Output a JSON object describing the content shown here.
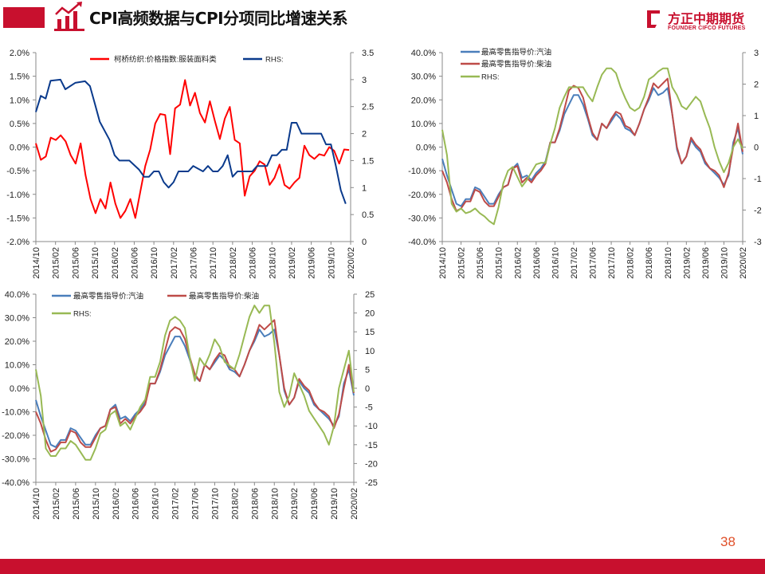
{
  "header": {
    "title": "CPI高频数据与CPI分项同比增速关系",
    "accent": "#c8102e"
  },
  "logo": {
    "cn": "方正中期期货",
    "en": "FOUNDER CIFCO FUTURES"
  },
  "footer": {
    "page_number": "38"
  },
  "chart_data": [
    {
      "type": "line",
      "title": "",
      "x_tick_labels": [
        "2014/10",
        "2015/02",
        "2015/06",
        "2015/10",
        "2016/02",
        "2016/06",
        "2016/10",
        "2017/02",
        "2017/06",
        "2017/10",
        "2018/02",
        "2018/06",
        "2018/10",
        "2019/02",
        "2019/06",
        "2019/10",
        "2020/02"
      ],
      "x_unit": "month index from 2014/10",
      "y_left": {
        "range": [
          -2.0,
          2.0
        ],
        "step": 0.5,
        "labels": [
          "2.0%",
          "1.5%",
          "1.0%",
          "0.5%",
          "0.0%",
          "-0.5%",
          "-1.0%",
          "-1.5%",
          "-2.0%"
        ]
      },
      "y_right": {
        "range": [
          0,
          3.5
        ],
        "step": 0.5,
        "labels": [
          "3.5",
          "3",
          "2.5",
          "2",
          "1.5",
          "1",
          "0.5",
          "0"
        ]
      },
      "legend": "top",
      "series": [
        {
          "name": "柯桥纺织:价格指数:服装面料类",
          "axis": "left",
          "color": "#ff0000",
          "values": [
            0.08,
            -0.27,
            -0.2,
            0.2,
            0.15,
            0.25,
            0.12,
            -0.17,
            -0.35,
            0.08,
            -0.6,
            -1.1,
            -1.4,
            -1.1,
            -1.3,
            -0.75,
            -1.2,
            -1.5,
            -1.35,
            -1.1,
            -1.5,
            -0.95,
            -0.4,
            -0.05,
            0.5,
            0.7,
            0.68,
            -0.15,
            0.82,
            0.9,
            1.42,
            0.88,
            1.15,
            0.72,
            0.52,
            0.97,
            0.55,
            0.17,
            0.6,
            0.85,
            0.15,
            0.08,
            -1.03,
            -0.62,
            -0.5,
            -0.3,
            -0.37,
            -0.8,
            -0.65,
            -0.37,
            -0.8,
            -0.88,
            -0.75,
            -0.65,
            0.03,
            -0.17,
            -0.25,
            -0.15,
            -0.18,
            0,
            -0.08,
            -0.35,
            -0.05,
            -0.06
          ]
        },
        {
          "name": "RHS:",
          "axis": "right",
          "color": "#0a3a8c",
          "points": [
            [
              0,
              2.4
            ],
            [
              1,
              2.7
            ],
            [
              2,
              2.65
            ],
            [
              3,
              2.98
            ],
            [
              5,
              3.0
            ],
            [
              6,
              2.82
            ],
            [
              8,
              2.94
            ],
            [
              10,
              2.97
            ],
            [
              11,
              2.88
            ],
            [
              12,
              2.55
            ],
            [
              13,
              2.22
            ],
            [
              14,
              2.05
            ],
            [
              15,
              1.88
            ],
            [
              16,
              1.6
            ],
            [
              17,
              1.5
            ],
            [
              19,
              1.5
            ],
            [
              21,
              1.33
            ],
            [
              22,
              1.2
            ],
            [
              23,
              1.2
            ],
            [
              24,
              1.3
            ],
            [
              25,
              1.3
            ],
            [
              26,
              1.1
            ],
            [
              27,
              1.0
            ],
            [
              28,
              1.1
            ],
            [
              29,
              1.3
            ],
            [
              31,
              1.3
            ],
            [
              32,
              1.4
            ],
            [
              34,
              1.3
            ],
            [
              35,
              1.4
            ],
            [
              36,
              1.3
            ],
            [
              37,
              1.3
            ],
            [
              38,
              1.4
            ],
            [
              39,
              1.6
            ],
            [
              40,
              1.2
            ],
            [
              41,
              1.3
            ],
            [
              44,
              1.3
            ],
            [
              45,
              1.4
            ],
            [
              47,
              1.4
            ],
            [
              48,
              1.6
            ],
            [
              49,
              1.6
            ],
            [
              50,
              1.7
            ],
            [
              51,
              1.7
            ],
            [
              52,
              2.2
            ],
            [
              53,
              2.2
            ],
            [
              54,
              2.0
            ],
            [
              58,
              2.0
            ],
            [
              59,
              1.8
            ],
            [
              60,
              1.8
            ],
            [
              61,
              1.4
            ],
            [
              62,
              0.95
            ],
            [
              63,
              0.7
            ]
          ]
        }
      ]
    },
    {
      "type": "line",
      "title": "",
      "x_tick_labels": [
        "2014/10",
        "2015/02",
        "2015/06",
        "2015/10",
        "2016/02",
        "2016/06",
        "2016/10",
        "2017/02",
        "2017/06",
        "2017/10",
        "2018/02",
        "2018/06",
        "2018/10",
        "2019/02",
        "2019/06",
        "2019/10",
        "2020/02"
      ],
      "y_left": {
        "range": [
          -40,
          40
        ],
        "step": 10,
        "labels": [
          "40.0%",
          "30.0%",
          "20.0%",
          "10.0%",
          "0.0%",
          "-10.0%",
          "-20.0%",
          "-30.0%",
          "-40.0%"
        ]
      },
      "y_right": {
        "range": [
          -3,
          3
        ],
        "step": 1,
        "labels": [
          "3",
          "2",
          "1",
          "0",
          "-1",
          "-2",
          "-3"
        ]
      },
      "legend": "top-left",
      "series": [
        {
          "name": "最高零售指导价:汽油",
          "axis": "left",
          "color": "#4a7ebb",
          "values": [
            -5,
            -12,
            -18,
            -24,
            -25,
            -22,
            -22,
            -17,
            -18,
            -21,
            -24,
            -24,
            -20,
            -17,
            -16,
            -9,
            -7,
            -13,
            -12,
            -14,
            -11,
            -9,
            -6,
            2,
            2,
            7,
            14,
            18,
            22,
            22,
            18,
            12,
            5,
            3,
            10,
            8,
            11,
            14,
            12,
            8,
            7,
            5,
            10,
            16,
            20,
            25,
            22,
            23,
            25,
            14,
            -1,
            -7,
            -4,
            3,
            0,
            -2,
            -7,
            -9,
            -11,
            -13,
            -16,
            -12,
            2,
            8,
            -3
          ]
        },
        {
          "name": "最高零售指导价:柴油",
          "axis": "left",
          "color": "#be4b48",
          "values": [
            -10,
            -15,
            -22,
            -27,
            -26,
            -23,
            -23,
            -18,
            -19,
            -23,
            -25,
            -25,
            -21,
            -17,
            -16,
            -9,
            -8,
            -15,
            -13,
            -15,
            -12,
            -10,
            -7,
            2,
            2,
            8,
            16,
            24,
            26,
            25,
            21,
            13,
            6,
            3,
            10,
            8,
            12,
            15,
            14,
            9,
            8,
            5,
            10,
            16,
            21,
            27,
            25,
            27,
            29,
            14,
            0,
            -7,
            -4,
            4,
            1,
            -1,
            -6,
            -9,
            -10,
            -12,
            -17,
            -11,
            0,
            10,
            -2
          ]
        },
        {
          "name": "RHS:",
          "axis": "right",
          "color": "#98b954",
          "values": [
            0.55,
            -0.25,
            -1.8,
            -2.05,
            -1.95,
            -2.1,
            -2.05,
            -1.95,
            -2.1,
            -2.2,
            -2.35,
            -2.45,
            -1.9,
            -1.15,
            -0.75,
            -0.63,
            -0.95,
            -1.25,
            -1.05,
            -0.8,
            -0.55,
            -0.5,
            -0.5,
            0.1,
            0.6,
            1.25,
            1.6,
            1.9,
            1.9,
            1.9,
            1.9,
            1.65,
            1.45,
            1.9,
            2.3,
            2.5,
            2.5,
            2.35,
            1.9,
            1.55,
            1.25,
            1.15,
            1.25,
            1.6,
            2.15,
            2.25,
            2.4,
            2.5,
            2.5,
            1.9,
            1.65,
            1.3,
            1.2,
            1.4,
            1.6,
            1.45,
            1.0,
            0.6,
            0,
            -0.45,
            -0.8,
            -0.5,
            0,
            0.25,
            -0.05
          ]
        }
      ]
    },
    {
      "type": "line",
      "title": "",
      "x_tick_labels": [
        "2014/10",
        "2015/02",
        "2015/06",
        "2015/10",
        "2016/02",
        "2016/06",
        "2016/10",
        "2017/02",
        "2017/06",
        "2017/10",
        "2018/02",
        "2018/06",
        "2018/10",
        "2019/02",
        "2019/06",
        "2019/10",
        "2020/02"
      ],
      "y_left": {
        "range": [
          -40,
          40
        ],
        "step": 10,
        "labels": [
          "40.0%",
          "30.0%",
          "20.0%",
          "10.0%",
          "0.0%",
          "-10.0%",
          "-20.0%",
          "-30.0%",
          "-40.0%"
        ]
      },
      "y_right": {
        "range": [
          -25,
          25
        ],
        "step": 5,
        "labels": [
          "25",
          "20",
          "15",
          "10",
          "5",
          "0",
          "-5",
          "-10",
          "-15",
          "-20",
          "-25"
        ]
      },
      "legend": "top-left",
      "series": [
        {
          "name": "最高零售指导价:汽油",
          "axis": "left",
          "color": "#4a7ebb",
          "values": [
            -5,
            -12,
            -18,
            -24,
            -25,
            -22,
            -22,
            -17,
            -18,
            -21,
            -24,
            -24,
            -20,
            -17,
            -16,
            -9,
            -7,
            -13,
            -12,
            -14,
            -11,
            -9,
            -6,
            2,
            2,
            7,
            14,
            18,
            22,
            22,
            18,
            12,
            5,
            3,
            10,
            8,
            11,
            14,
            12,
            8,
            7,
            5,
            10,
            16,
            20,
            25,
            22,
            23,
            25,
            14,
            -1,
            -7,
            -4,
            3,
            0,
            -2,
            -7,
            -9,
            -11,
            -13,
            -16,
            -12,
            2,
            8,
            -3
          ]
        },
        {
          "name": "最高零售指导价:柴油",
          "axis": "left",
          "color": "#be4b48",
          "values": [
            -10,
            -15,
            -22,
            -27,
            -26,
            -23,
            -23,
            -18,
            -19,
            -23,
            -25,
            -25,
            -21,
            -17,
            -16,
            -9,
            -8,
            -15,
            -13,
            -15,
            -12,
            -10,
            -7,
            2,
            2,
            8,
            16,
            24,
            26,
            25,
            21,
            13,
            6,
            3,
            10,
            8,
            12,
            15,
            14,
            9,
            8,
            5,
            10,
            16,
            21,
            27,
            25,
            27,
            29,
            14,
            0,
            -7,
            -4,
            4,
            1,
            -1,
            -6,
            -9,
            -10,
            -12,
            -17,
            -11,
            0,
            10,
            -2
          ]
        },
        {
          "name": "RHS:",
          "axis": "right",
          "color": "#98b954",
          "values": [
            5,
            -2,
            -16,
            -18,
            -18,
            -16,
            -16,
            -14,
            -15,
            -17,
            -19,
            -19,
            -16,
            -12,
            -11,
            -7,
            -6,
            -10,
            -9,
            -11,
            -8,
            -5,
            -3,
            3,
            3,
            7,
            14,
            18,
            19,
            18,
            16,
            8,
            2,
            8,
            6,
            9,
            13,
            11,
            7,
            6,
            5,
            9,
            14,
            19,
            22,
            20,
            22,
            22,
            12,
            -1,
            -5,
            -2,
            4,
            1,
            -2,
            -6,
            -8,
            -10,
            -12,
            -15,
            -10,
            0,
            5,
            10,
            -1
          ]
        }
      ]
    }
  ]
}
